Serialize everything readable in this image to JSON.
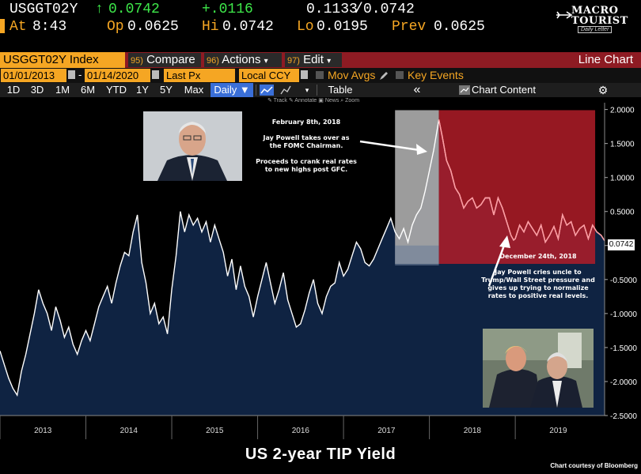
{
  "quote": {
    "ticker": "USGGT02Y",
    "last_arrow": "↑",
    "last": "0.0742",
    "change": "+.0116",
    "bid_ask": "0.1133",
    "bid_ask_sep": "/",
    "bid_ask2": "0.0742",
    "at_label": "At",
    "time": "8:43",
    "op_label": "Op",
    "open": "0.0625",
    "hi_label": "Hi",
    "high": "0.0742",
    "lo_label": "Lo",
    "low": "0.0195",
    "prev_label": "Prev",
    "prev": "0.0625"
  },
  "logo": {
    "line1": "MACRO",
    "line2": "TOURIST",
    "tagline": "Daily Letter"
  },
  "command_bar": {
    "index": "USGGT02Y Index",
    "compare_num": "95)",
    "compare": "Compare",
    "actions_num": "96)",
    "actions": "Actions",
    "edit_num": "97)",
    "edit": "Edit",
    "dropdown": "▾",
    "title": "Line Chart"
  },
  "date_bar": {
    "start": "01/01/2013",
    "dash": "-",
    "end": "01/14/2020",
    "field": "Last Px",
    "currency": "Local CCY",
    "mov_avgs": "Mov Avgs",
    "key_events": "Key Events"
  },
  "toolbar": {
    "ranges": [
      "1D",
      "3D",
      "1M",
      "6M",
      "YTD",
      "1Y",
      "5Y",
      "Max"
    ],
    "frequency": "Daily ▼",
    "table": "Table",
    "collapse": "«",
    "chart_content": "Chart Content",
    "gear": "⚙",
    "sub_tools": "✎ Track   ✎ Annotate  ▣ News  ⌕ Zoom"
  },
  "annotations": {
    "top": "February 8th, 2018\n\nJay Powell takes over as\nthe FOMC Chairman.\n\nProceeds to crank real rates\nto new highs post GFC.",
    "bottom": "December 24th, 2018\n\nJay Powell cries uncle to\nTrump/Wall Street pressure and\ngives up trying to normalize\nrates to positive real levels."
  },
  "caption": "US 2-year TIP Yield",
  "credit": "Chart courtesy of Bloomberg",
  "colors": {
    "fill": "#0f2342",
    "line": "#ffffff",
    "highlight_grey": "#a9a9a9",
    "highlight_red": "#b01c28",
    "accent": "#f5a623"
  },
  "chart_data": {
    "type": "area",
    "title": "",
    "xlabel": "",
    "ylabel": "",
    "ylim": [
      -2.5,
      2.1
    ],
    "y_ticks": [
      2.0,
      1.5,
      1.0,
      0.5,
      0.0,
      -0.5,
      -1.0,
      -1.5,
      -2.0,
      -2.5
    ],
    "y_tick_labels": [
      "2.0000",
      "1.5000",
      "1.0000",
      "0.5000",
      "0.0000",
      "-0.5000",
      "-1.0000",
      "-1.5000",
      "-2.0000",
      "-2.5000"
    ],
    "x_range": [
      2013.0,
      2020.04
    ],
    "x_tick_labels": [
      "2013",
      "2014",
      "2015",
      "2016",
      "2017",
      "2018",
      "2019"
    ],
    "last_value": "0.0742",
    "highlight_periods": [
      {
        "from": 2017.6,
        "to": 2018.11,
        "color": "grey"
      },
      {
        "from": 2018.11,
        "to": 2019.93,
        "color": "red"
      }
    ],
    "series": [
      {
        "x": [
          2013.0,
          2013.05,
          2013.1,
          2013.15,
          2013.2,
          2013.25,
          2013.3,
          2013.35,
          2013.4,
          2013.45,
          2013.5,
          2013.55,
          2013.6,
          2013.65,
          2013.7,
          2013.75,
          2013.8,
          2013.85,
          2013.9,
          2013.95,
          2014.0,
          2014.05,
          2014.1,
          2014.15,
          2014.2,
          2014.25,
          2014.3,
          2014.35,
          2014.4,
          2014.45,
          2014.5,
          2014.55,
          2014.6,
          2014.65,
          2014.7,
          2014.75,
          2014.8,
          2014.85,
          2014.9,
          2014.95,
          2015.0,
          2015.05,
          2015.1,
          2015.15,
          2015.2,
          2015.25,
          2015.3,
          2015.35,
          2015.4,
          2015.45,
          2015.5,
          2015.55,
          2015.6,
          2015.65,
          2015.7,
          2015.75,
          2015.8,
          2015.85,
          2015.9,
          2015.95,
          2016.0,
          2016.05,
          2016.1,
          2016.15,
          2016.2,
          2016.25,
          2016.3,
          2016.35,
          2016.4,
          2016.45,
          2016.5,
          2016.55,
          2016.6,
          2016.65,
          2016.7,
          2016.75,
          2016.8,
          2016.85,
          2016.9,
          2016.95,
          2017.0,
          2017.05,
          2017.1,
          2017.15,
          2017.2,
          2017.25,
          2017.3,
          2017.35,
          2017.4,
          2017.45,
          2017.5,
          2017.55,
          2017.6,
          2017.65,
          2017.7,
          2017.75,
          2017.8,
          2017.85,
          2017.9,
          2017.95,
          2018.0,
          2018.05,
          2018.11,
          2018.15,
          2018.2,
          2018.25,
          2018.3,
          2018.35,
          2018.4,
          2018.45,
          2018.5,
          2018.55,
          2018.6,
          2018.65,
          2018.7,
          2018.75,
          2018.8,
          2018.85,
          2018.9,
          2018.95,
          2018.98,
          2019.0,
          2019.05,
          2019.1,
          2019.15,
          2019.2,
          2019.25,
          2019.3,
          2019.35,
          2019.4,
          2019.45,
          2019.5,
          2019.55,
          2019.6,
          2019.65,
          2019.7,
          2019.75,
          2019.8,
          2019.85,
          2019.9,
          2019.95,
          2020.0,
          2020.04
        ],
        "values": [
          -1.55,
          -1.75,
          -1.95,
          -2.1,
          -2.2,
          -1.85,
          -1.6,
          -1.3,
          -1.0,
          -0.65,
          -0.85,
          -1.0,
          -1.25,
          -0.9,
          -1.1,
          -1.35,
          -1.2,
          -1.45,
          -1.6,
          -1.4,
          -1.25,
          -1.4,
          -1.15,
          -0.9,
          -0.75,
          -0.6,
          -0.85,
          -0.55,
          -0.3,
          -0.1,
          -0.15,
          0.2,
          0.45,
          -0.25,
          -0.55,
          -1.0,
          -0.85,
          -1.15,
          -1.05,
          -1.3,
          -0.65,
          -0.15,
          0.5,
          0.2,
          0.45,
          0.3,
          0.4,
          0.2,
          0.35,
          0.05,
          0.3,
          0.1,
          -0.1,
          -0.45,
          -0.2,
          -0.65,
          -0.3,
          -0.6,
          -0.75,
          -1.05,
          -0.75,
          -0.5,
          -0.25,
          -0.55,
          -0.85,
          -0.65,
          -0.4,
          -0.8,
          -1.0,
          -1.2,
          -1.15,
          -0.95,
          -0.7,
          -0.5,
          -0.85,
          -1.0,
          -0.75,
          -0.6,
          -0.55,
          -0.25,
          -0.45,
          -0.35,
          -0.15,
          0.05,
          -0.05,
          -0.25,
          -0.3,
          -0.2,
          -0.05,
          0.1,
          0.25,
          0.4,
          0.2,
          0.1,
          0.25,
          0.05,
          0.3,
          0.45,
          0.55,
          0.8,
          1.1,
          1.4,
          1.85,
          1.6,
          1.25,
          1.1,
          0.85,
          0.75,
          0.55,
          0.65,
          0.7,
          0.55,
          0.6,
          0.7,
          0.7,
          0.45,
          0.7,
          0.55,
          0.35,
          0.15,
          0.08,
          0.1,
          0.3,
          0.2,
          0.35,
          0.25,
          0.15,
          0.3,
          0.05,
          0.15,
          0.28,
          0.1,
          0.45,
          0.3,
          0.35,
          0.15,
          0.25,
          0.3,
          0.1,
          0.3,
          0.2,
          0.15,
          0.07
        ]
      }
    ]
  }
}
